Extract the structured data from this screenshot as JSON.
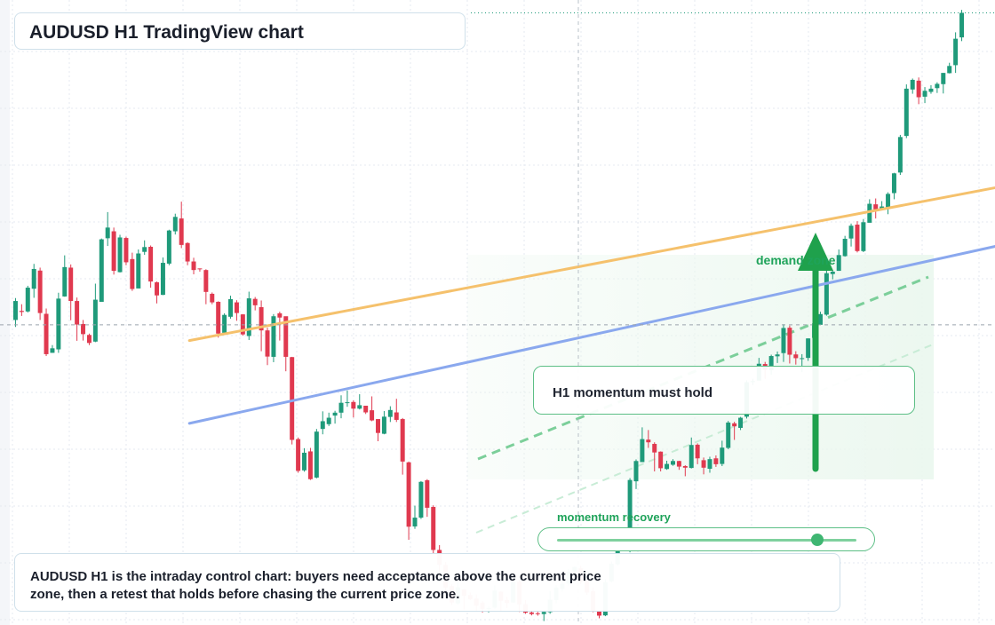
{
  "header": {
    "title": "AUDUSD H1 TradingView chart"
  },
  "annotations": {
    "zone_label": "demand zone",
    "callout": "H1 momentum must hold",
    "momentum_label": "momentum recovery",
    "momentum_level": 0.87
  },
  "note": {
    "text": "AUDUSD H1 is the intraday control chart: buyers need acceptance above the current price zone, then a retest that holds before chasing the current price zone."
  },
  "colors": {
    "up": "#1f9a7a",
    "down": "#e0394f",
    "orange_line": "#f5c16c",
    "blue_line": "#8aa8ee",
    "accent_green": "#1fa35a"
  },
  "chart_data": {
    "type": "candlestick",
    "title": "AUDUSD H1 TradingView chart",
    "grid": true,
    "current_price_marker": 108.4,
    "y_range": [
      -4,
      230
    ],
    "candles": [
      [
        0,
        110.2,
        117.3,
        107.6,
        118.4,
        106.6
      ],
      [
        1,
        113.6,
        113.2,
        111.7,
        116.1,
        110.3
      ],
      [
        2,
        113.4,
        122.3,
        113.0,
        123.0,
        111.7
      ],
      [
        3,
        121.9,
        129.3,
        118.5,
        131.2,
        118.0
      ],
      [
        4,
        128.7,
        112.8,
        110.2,
        129.8,
        109.1
      ],
      [
        5,
        112.5,
        97.4,
        96.7,
        114.5,
        89.7
      ],
      [
        6,
        97.9,
        99.6,
        97.9,
        100.8,
        96.3
      ],
      [
        7,
        99.2,
        118.2,
        97.9,
        120.4,
        92.6
      ],
      [
        8,
        119.0,
        130.0,
        118.9,
        134.4,
        117.2
      ],
      [
        9,
        129.8,
        117.3,
        110.1,
        131.0,
        110.0
      ],
      [
        10,
        117.3,
        108.5,
        102.4,
        118.6,
        102.0
      ],
      [
        11,
        108.7,
        104.9,
        102.5,
        110.2,
        101.5
      ],
      [
        12,
        104.6,
        101.6,
        100.8,
        105.1,
        99.2
      ],
      [
        13,
        102.1,
        117.8,
        101.9,
        123.8,
        101.5
      ],
      [
        14,
        117.0,
        140.4,
        117.2,
        140.7,
        116.8
      ],
      [
        15,
        140.8,
        144.8,
        137.9,
        150.6,
        135.2
      ],
      [
        16,
        143.4,
        128.6,
        127.2,
        144.8,
        125.8
      ],
      [
        17,
        128.1,
        141.1,
        128.0,
        142.1,
        127.7
      ],
      [
        18,
        140.9,
        131.8,
        130.7,
        141.4,
        130.6
      ],
      [
        19,
        133.0,
        121.8,
        121.1,
        135.4,
        115.0
      ],
      [
        20,
        122.0,
        135.1,
        122.1,
        136.6,
        121.9
      ],
      [
        21,
        135.7,
        137.5,
        134.6,
        140.0,
        132.5
      ],
      [
        22,
        137.6,
        124.6,
        122.3,
        138.1,
        118.4
      ],
      [
        23,
        124.3,
        119.4,
        116.4,
        124.6,
        115.8
      ],
      [
        24,
        119.6,
        131.6,
        119.5,
        133.6,
        119.1
      ],
      [
        25,
        131.3,
        143.7,
        130.7,
        144.0,
        129.5
      ],
      [
        26,
        143.4,
        148.8,
        142.2,
        150.0,
        137.4
      ],
      [
        27,
        148.2,
        138.3,
        137.1,
        154.5,
        136.6
      ],
      [
        28,
        139.0,
        132.1,
        130.7,
        139.3,
        129.6
      ],
      [
        29,
        132.1,
        128.9,
        127.3,
        133.5,
        126.9
      ],
      [
        30,
        129.5,
        129.3,
        128.3,
        129.5,
        125.4
      ],
      [
        31,
        128.9,
        120.7,
        116.1,
        129.2,
        115.2
      ],
      [
        32,
        120.0,
        116.8,
        116.1,
        120.5,
        114.9
      ],
      [
        33,
        117.0,
        105.1,
        103.6,
        117.2,
        96.2
      ],
      [
        34,
        105.4,
        112.1,
        105.4,
        112.7,
        104.5
      ],
      [
        35,
        111.4,
        118.0,
        110.7,
        119.3,
        110.3
      ],
      [
        36,
        116.8,
        112.8,
        109.9,
        117.6,
        102.2
      ],
      [
        37,
        112.3,
        104.8,
        104.3,
        112.4,
        103.6
      ],
      [
        38,
        104.2,
        118.3,
        102.7,
        120.8,
        102.2
      ],
      [
        39,
        118.1,
        115.7,
        113.8,
        118.8,
        111.5
      ],
      [
        40,
        115.0,
        106.3,
        98.5,
        117.5,
        98.1
      ],
      [
        41,
        106.3,
        96.5,
        93.3,
        107.3,
        91.4
      ],
      [
        42,
        96.4,
        111.6,
        94.4,
        112.4,
        94.0
      ],
      [
        43,
        112.7,
        111.1,
        102.5,
        113.3,
        102.1
      ],
      [
        44,
        111.6,
        96.4,
        91.0,
        111.3,
        86.8
      ],
      [
        45,
        96.3,
        65.3,
        63.6,
        96.4,
        62.5
      ],
      [
        46,
        65.6,
        53.7,
        53.0,
        66.2,
        45.5
      ],
      [
        47,
        53.9,
        60.5,
        53.4,
        62.2,
        51.0
      ],
      [
        48,
        61.0,
        50.6,
        50.3,
        62.3,
        45.5
      ],
      [
        49,
        51.2,
        68.4,
        50.9,
        69.4,
        50.4
      ],
      [
        50,
        69.4,
        72.3,
        67.4,
        76.0,
        67.2
      ],
      [
        51,
        71.2,
        73.6,
        70.5,
        75.5,
        69.1
      ],
      [
        52,
        74.4,
        75.5,
        71.4,
        76.2,
        71.3
      ],
      [
        53,
        75.5,
        79.2,
        73.4,
        82.0,
        73.4
      ],
      [
        54,
        79.1,
        79.4,
        77.7,
        83.8,
        77.2
      ],
      [
        55,
        79.5,
        77.0,
        73.7,
        80.1,
        72.1
      ],
      [
        56,
        77.0,
        78.3,
        76.7,
        82.4,
        74.3
      ],
      [
        57,
        78.1,
        75.6,
        75.0,
        78.1,
        74.5
      ],
      [
        58,
        76.4,
        72.6,
        72.3,
        81.6,
        71.6
      ],
      [
        59,
        73.1,
        67.9,
        64.8,
        73.1,
        64.5
      ],
      [
        60,
        67.6,
        74.0,
        67.4,
        76.1,
        67.3
      ],
      [
        61,
        73.9,
        76.5,
        72.0,
        77.9,
        71.6
      ],
      [
        62,
        75.6,
        72.8,
        72.0,
        80.7,
        72.1
      ],
      [
        63,
        73.1,
        57.2,
        52.3,
        73.5,
        44.5
      ],
      [
        64,
        56.9,
        32.8,
        27.9,
        57.2,
        25.0
      ],
      [
        65,
        32.9,
        36.2,
        32.0,
        40.7,
        31.8
      ],
      [
        66,
        36.2,
        49.6,
        35.7,
        49.9,
        34.0
      ],
      [
        67,
        50.2,
        39.9,
        36.5,
        50.6,
        36.3
      ],
      [
        68,
        40.2,
        24.1,
        22.8,
        40.8,
        19.4
      ],
      [
        69,
        24.1,
        18.5,
        15.9,
        25.9,
        12.1
      ],
      [
        70,
        18.5,
        10.0,
        7.7,
        19.6,
        6.7
      ],
      [
        71,
        10.6,
        4.4,
        3.5,
        11.2,
        0.5
      ],
      [
        72,
        4.1,
        10.1,
        3.7,
        12.1,
        2.7
      ],
      [
        73,
        9.3,
        6.9,
        1.8,
        9.5,
        0.8
      ],
      [
        74,
        7.2,
        5.7,
        5.3,
        8.2,
        2.3
      ],
      [
        75,
        5.9,
        3.2,
        1.2,
        7.5,
        1.0
      ],
      [
        76,
        4.4,
        2.0,
        0.7,
        5.0,
        0.5
      ],
      [
        77,
        2.1,
        2.3,
        0.7,
        2.9,
        0.1
      ],
      [
        78,
        2.5,
        8.9,
        2.1,
        10.8,
        0.0
      ],
      [
        79,
        8.5,
        5.0,
        1.1,
        8.6,
        0.7
      ],
      [
        80,
        5.4,
        4.2,
        2.3,
        6.6,
        1.7
      ],
      [
        81,
        4.4,
        12.2,
        4.4,
        12.7,
        4.1
      ],
      [
        82,
        12.2,
        3.7,
        0.9,
        13.1,
        0.3
      ],
      [
        83,
        3.8,
        0.6,
        0.2,
        5.4,
        0.1
      ],
      [
        84,
        0.7,
        0.1,
        -0.4,
        1.5,
        -1.1
      ],
      [
        85,
        0.4,
        0.3,
        -0.5,
        0.9,
        -0.9
      ],
      [
        86,
        0.1,
        0.9,
        -2.5,
        1.3,
        -3.8
      ],
      [
        87,
        0.8,
        5.5,
        0.2,
        8.7,
        0.0
      ],
      [
        88,
        5.3,
        10.0,
        4.2,
        10.9,
        3.6
      ],
      [
        89,
        9.5,
        11.4,
        8.5,
        13.0,
        8.3
      ],
      [
        90,
        11.5,
        15.9,
        10.8,
        16.9,
        10.5
      ],
      [
        91,
        16.0,
        17.7,
        14.6,
        17.9,
        14.4
      ],
      [
        92,
        17.2,
        12.2,
        11.3,
        18.3,
        10.8
      ],
      [
        93,
        12.8,
        8.1,
        7.2,
        13.6,
        6.4
      ],
      [
        94,
        8.7,
        1.0,
        0.8,
        10.0,
        -0.8
      ],
      [
        95,
        1.2,
        -0.5,
        -1.5,
        1.5,
        -3.5
      ],
      [
        96,
        -0.4,
        12.0,
        -0.7,
        13.1,
        -0.8
      ],
      [
        97,
        12.3,
        18.9,
        12.0,
        19.8,
        11.2
      ],
      [
        98,
        18.7,
        31.2,
        18.3,
        32.1,
        18.1
      ],
      [
        99,
        30.2,
        24.3,
        24.0,
        31.2,
        21.7
      ],
      [
        100,
        24.5,
        50.3,
        23.2,
        51.0,
        22.5
      ],
      [
        101,
        49.8,
        57.4,
        46.9,
        58.0,
        46.6
      ],
      [
        102,
        57.0,
        65.6,
        57.1,
        70.0,
        56.5
      ],
      [
        103,
        65.4,
        64.4,
        62.3,
        69.0,
        61.6
      ],
      [
        104,
        63.8,
        60.6,
        53.5,
        64.4,
        53.5
      ],
      [
        105,
        60.9,
        54.7,
        53.5,
        61.0,
        51.6
      ],
      [
        106,
        54.4,
        56.3,
        54.1,
        57.5,
        51.9
      ],
      [
        107,
        56.0,
        57.4,
        55.6,
        58.1,
        54.7
      ],
      [
        108,
        57.4,
        55.3,
        54.1,
        57.5,
        53.2
      ],
      [
        109,
        55.5,
        54.9,
        51.7,
        55.8,
        50.9
      ],
      [
        110,
        54.8,
        63.4,
        54.6,
        66.2,
        53.3
      ],
      [
        111,
        63.5,
        58.4,
        56.2,
        64.0,
        56.1
      ],
      [
        112,
        57.7,
        54.9,
        52.4,
        58.7,
        52.3
      ],
      [
        113,
        54.5,
        58.1,
        53.0,
        59.0,
        51.8
      ],
      [
        114,
        58.4,
        56.2,
        55.2,
        59.5,
        50.6
      ],
      [
        115,
        56.3,
        62.4,
        55.5,
        65.0,
        55.2
      ],
      [
        116,
        62.3,
        71.8,
        61.8,
        72.4,
        61.0
      ],
      [
        117,
        71.5,
        70.4,
        65.3,
        72.1,
        65.0
      ],
      [
        118,
        69.8,
        73.6,
        69.0,
        73.9,
        68.6
      ],
      [
        119,
        74.0,
        86.9,
        73.3,
        87.6,
        69.2
      ],
      [
        120,
        87.3,
        87.3,
        85.8,
        88.2,
        83.5
      ],
      [
        121,
        87.5,
        93.8,
        87.6,
        96.0,
        87.0
      ],
      [
        122,
        93.7,
        91.6,
        88.2,
        94.5,
        88.1
      ],
      [
        123,
        91.4,
        96.7,
        89.7,
        97.2,
        89.5
      ],
      [
        124,
        96.6,
        97.3,
        94.1,
        98.4,
        92.8
      ],
      [
        125,
        97.8,
        107.2,
        94.5,
        108.6,
        94.4
      ],
      [
        126,
        107.3,
        97.2,
        93.9,
        108.1,
        88.3
      ],
      [
        127,
        97.3,
        95.9,
        93.5,
        98.5,
        92.2
      ],
      [
        128,
        95.9,
        95.9,
        90.7,
        97.4,
        89.0
      ],
      [
        129,
        96.0,
        103.3,
        94.9,
        103.3,
        93.3
      ],
      [
        130,
        103.5,
        108.9,
        102.9,
        109.1,
        102.7
      ],
      [
        131,
        108.4,
        112.4,
        108.3,
        113.3,
        107.6
      ],
      [
        132,
        112.2,
        127.7,
        111.8,
        129.4,
        111.1
      ],
      [
        133,
        127.4,
        128.3,
        125.4,
        128.9,
        124.7
      ],
      [
        134,
        128.6,
        134.5,
        128.6,
        136.6,
        127.7
      ],
      [
        135,
        134.1,
        140.6,
        133.9,
        141.7,
        133.2
      ],
      [
        136,
        140.7,
        145.5,
        137.7,
        146.3,
        136.8
      ],
      [
        137,
        145.9,
        136.0,
        135.5,
        147.2,
        135.5
      ],
      [
        138,
        136.0,
        146.8,
        135.6,
        148.0,
        134.4
      ],
      [
        139,
        146.6,
        153.7,
        146.7,
        155.4,
        145.4
      ],
      [
        140,
        153.5,
        151.6,
        148.2,
        155.7,
        147.5
      ],
      [
        141,
        151.6,
        152.7,
        151.5,
        154.7,
        150.8
      ],
      [
        142,
        152.4,
        157.4,
        149.8,
        158.0,
        149.8
      ],
      [
        143,
        157.7,
        165.1,
        155.4,
        165.3,
        154.8
      ],
      [
        144,
        165.4,
        178.7,
        164.5,
        179.5,
        163.2
      ],
      [
        145,
        179.1,
        196.8,
        178.3,
        198.4,
        176.5
      ],
      [
        146,
        196.5,
        200.1,
        194.9,
        200.6,
        192.9
      ],
      [
        147,
        199.8,
        193.6,
        191.0,
        201.0,
        190.2
      ],
      [
        148,
        193.8,
        196.0,
        191.4,
        197.4,
        190.8
      ],
      [
        149,
        195.6,
        196.8,
        194.9,
        198.1,
        191.5
      ],
      [
        150,
        197.0,
        198.6,
        195.2,
        199.2,
        195.1
      ],
      [
        151,
        198.5,
        202.7,
        195.0,
        202.7,
        194.2
      ],
      [
        152,
        202.6,
        205.3,
        202.5,
        206.5,
        196.2
      ],
      [
        153,
        205.6,
        215.5,
        202.7,
        217.9,
        202.4
      ],
      [
        154,
        216.0,
        225.2,
        214.6,
        226.3,
        212.9
      ]
    ],
    "trendlines": [
      {
        "name": "",
        "color": "#f5c16c",
        "points": [
          [
            28.3,
            102.5
          ],
          [
            211.0,
            182.2
          ]
        ]
      },
      {
        "name": "",
        "color": "#8aa8ee",
        "points": [
          [
            28.3,
            71.5
          ],
          [
            211.0,
            163.8
          ]
        ]
      }
    ]
  }
}
